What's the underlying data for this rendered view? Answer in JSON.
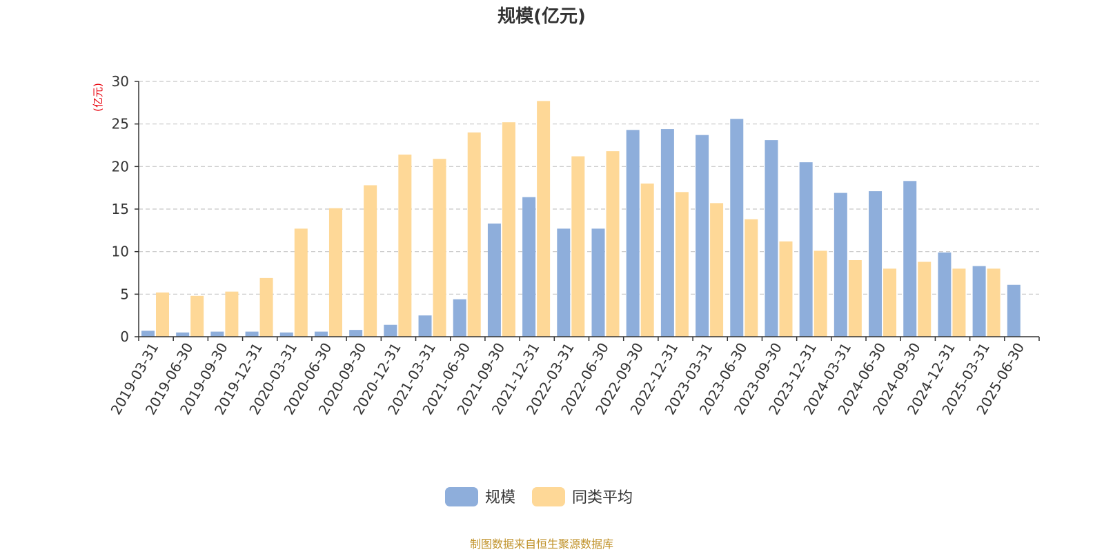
{
  "chart_data": {
    "type": "bar",
    "title": "规模(亿元)",
    "ylabel": "(亿元)",
    "ylim": [
      0,
      30
    ],
    "yticks": [
      0,
      5,
      10,
      15,
      20,
      25,
      30
    ],
    "grid": true,
    "legend_position": "bottom-center",
    "categories": [
      "2019-03-31",
      "2019-06-30",
      "2019-09-30",
      "2019-12-31",
      "2020-03-31",
      "2020-06-30",
      "2020-09-30",
      "2020-12-31",
      "2021-03-31",
      "2021-06-30",
      "2021-09-30",
      "2021-12-31",
      "2022-03-31",
      "2022-06-30",
      "2022-09-30",
      "2022-12-31",
      "2023-03-31",
      "2023-06-30",
      "2023-09-30",
      "2023-12-31",
      "2024-03-31",
      "2024-06-30",
      "2024-09-30",
      "2024-12-31",
      "2025-03-31",
      "2025-06-30"
    ],
    "series": [
      {
        "name": "规模",
        "color": "#8eaedb",
        "values": [
          0.7,
          0.5,
          0.6,
          0.6,
          0.5,
          0.6,
          0.8,
          1.4,
          2.5,
          4.4,
          13.3,
          16.4,
          12.7,
          12.7,
          24.3,
          24.4,
          23.7,
          25.6,
          23.1,
          20.5,
          16.9,
          17.1,
          18.3,
          9.9,
          8.3,
          6.1
        ]
      },
      {
        "name": "同类平均",
        "color": "#fed897",
        "values": [
          5.2,
          4.8,
          5.3,
          6.9,
          12.7,
          15.1,
          17.8,
          21.4,
          20.9,
          24.0,
          25.2,
          27.7,
          21.2,
          21.8,
          18.0,
          17.0,
          15.7,
          13.8,
          11.2,
          10.1,
          9.0,
          8.0,
          8.8,
          8.0,
          8.0,
          null
        ]
      }
    ]
  },
  "footer": {
    "source_note": "制图数据来自恒生聚源数据库"
  }
}
